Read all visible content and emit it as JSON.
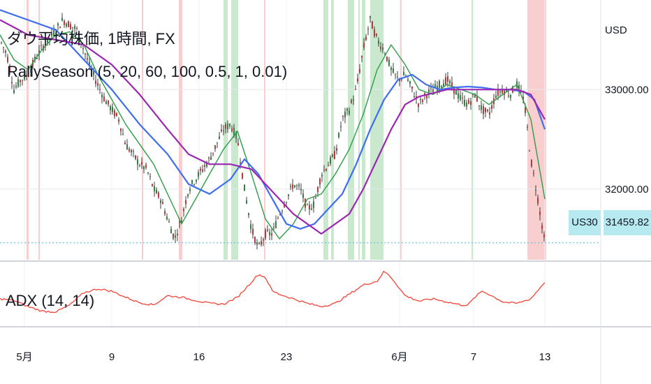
{
  "chart_title": "ダウ平均株価, 1時間, FX",
  "indicator_label": "RallySeason (5, 20, 60, 100, 0.5, 1, 0.01)",
  "adx_label": "ADX (14, 14)",
  "currency": "USD",
  "price_tag": {
    "symbol": "US30",
    "value": "31459.82"
  },
  "colors": {
    "candle": "#3c3c3c",
    "ma_green": "#2e9c46",
    "ma_blue": "#3f6df0",
    "ma_purple": "#9c27b0",
    "adx": "#f44336",
    "band_red": "#f8c5c5",
    "band_green": "#bfe4c4",
    "price_tag_bg": "#b7e9f0"
  },
  "chart_data": [
    {
      "type": "line",
      "panel": "price",
      "y_ticks": [
        "33000.00",
        "32000.00"
      ],
      "ylim": [
        31290,
        33900
      ],
      "x_ticks": [
        "5月",
        "9",
        "16",
        "23",
        "6月",
        "7",
        "13"
      ],
      "series": [
        {
          "role": "price",
          "x": [
            0,
            10,
            20,
            30,
            40,
            50,
            60,
            70,
            80,
            90,
            100,
            110,
            120,
            130,
            140,
            150,
            160,
            170,
            180,
            190,
            200,
            210,
            220,
            230,
            240,
            250,
            260,
            270,
            280,
            290,
            300,
            310,
            320,
            330,
            340,
            350,
            360,
            370,
            380,
            390,
            400,
            410,
            420,
            430,
            440,
            450,
            460,
            470,
            480,
            490,
            500,
            510,
            520,
            530,
            540,
            550,
            560,
            570,
            580,
            590,
            600,
            610,
            620,
            630,
            640,
            650,
            660,
            670,
            680,
            690,
            700,
            710,
            720,
            730,
            740,
            750,
            760,
            770,
            780
          ],
          "y": [
            33500,
            33350,
            33000,
            33100,
            33150,
            33300,
            33420,
            33500,
            33600,
            33700,
            33650,
            33600,
            33400,
            33200,
            33050,
            32900,
            32800,
            32700,
            32450,
            32350,
            32250,
            32200,
            32000,
            31900,
            31700,
            31500,
            31700,
            32000,
            32100,
            32200,
            32300,
            32450,
            32600,
            32650,
            32500,
            32000,
            31600,
            31400,
            31550,
            31550,
            31750,
            31900,
            32050,
            32000,
            31800,
            31850,
            32150,
            32250,
            32350,
            32700,
            32800,
            33000,
            33400,
            33700,
            33500,
            33400,
            33200,
            33100,
            33150,
            33000,
            32850,
            32950,
            33000,
            33050,
            33100,
            33000,
            32900,
            32850,
            32950,
            32800,
            32750,
            32950,
            33000,
            32950,
            33050,
            32900,
            32300,
            31900,
            31460
          ]
        },
        {
          "role": "ma_green",
          "x": [
            0,
            20,
            40,
            60,
            80,
            100,
            120,
            140,
            160,
            180,
            200,
            220,
            240,
            260,
            280,
            300,
            320,
            340,
            360,
            380,
            400,
            420,
            440,
            460,
            480,
            500,
            520,
            540,
            560,
            580,
            600,
            620,
            640,
            660,
            680,
            700,
            720,
            740,
            760,
            780
          ],
          "y": [
            33550,
            33300,
            33200,
            33400,
            33550,
            33580,
            33450,
            33150,
            32900,
            32650,
            32450,
            32250,
            31950,
            31650,
            31900,
            32150,
            32400,
            32580,
            32150,
            31700,
            31500,
            31650,
            31900,
            31950,
            32150,
            32400,
            32750,
            33200,
            33450,
            33250,
            33000,
            32950,
            33050,
            33000,
            32950,
            32850,
            32950,
            33050,
            32700,
            31900
          ]
        },
        {
          "role": "ma_blue",
          "x": [
            0,
            40,
            80,
            120,
            160,
            200,
            240,
            270,
            300,
            330,
            350,
            370,
            390,
            410,
            430,
            450,
            470,
            490,
            510,
            530,
            550,
            570,
            590,
            610,
            630,
            650,
            670,
            690,
            710,
            730,
            750,
            765,
            780
          ],
          "y": [
            33800,
            33700,
            33600,
            33300,
            33000,
            32650,
            32350,
            32050,
            31950,
            32100,
            32300,
            32150,
            31900,
            31650,
            31600,
            31650,
            31800,
            31950,
            32250,
            32600,
            32900,
            33100,
            33150,
            33050,
            33000,
            33020,
            33030,
            33020,
            33000,
            33000,
            32980,
            32900,
            32600
          ]
        },
        {
          "role": "ma_purple",
          "x": [
            0,
            40,
            80,
            120,
            160,
            200,
            240,
            270,
            300,
            330,
            360,
            380,
            400,
            420,
            440,
            460,
            480,
            500,
            520,
            540,
            560,
            580,
            600,
            640,
            680,
            720,
            740,
            760,
            780
          ],
          "y": [
            33700,
            33550,
            33500,
            33450,
            33250,
            32950,
            32600,
            32350,
            32250,
            32250,
            32200,
            32050,
            31900,
            31750,
            31650,
            31550,
            31650,
            31750,
            32000,
            32300,
            32600,
            32850,
            32930,
            33000,
            33000,
            33000,
            33000,
            32950,
            32700
          ]
        }
      ],
      "bands": [
        {
          "color": "red",
          "x_start": 38,
          "x_end": 41
        },
        {
          "color": "red",
          "x_start": 55,
          "x_end": 57
        },
        {
          "color": "red",
          "x_start": 203,
          "x_end": 205
        },
        {
          "color": "red",
          "x_start": 256,
          "x_end": 261
        },
        {
          "color": "green",
          "x_start": 320,
          "x_end": 326
        },
        {
          "color": "green",
          "x_start": 331,
          "x_end": 341
        },
        {
          "color": "red",
          "x_start": 378,
          "x_end": 380
        },
        {
          "color": "green",
          "x_start": 463,
          "x_end": 470
        },
        {
          "color": "green",
          "x_start": 474,
          "x_end": 478
        },
        {
          "color": "green",
          "x_start": 498,
          "x_end": 507
        },
        {
          "color": "green",
          "x_start": 513,
          "x_end": 515
        },
        {
          "color": "green",
          "x_start": 518,
          "x_end": 523
        },
        {
          "color": "green",
          "x_start": 530,
          "x_end": 549
        },
        {
          "color": "red",
          "x_start": 573,
          "x_end": 575
        },
        {
          "color": "green",
          "x_start": 675,
          "x_end": 677
        },
        {
          "color": "red",
          "x_start": 755,
          "x_end": 782
        }
      ]
    },
    {
      "type": "line",
      "panel": "adx",
      "ylim": [
        0,
        60
      ],
      "series": [
        {
          "role": "adx",
          "x": [
            0,
            20,
            40,
            60,
            80,
            100,
            120,
            140,
            160,
            180,
            200,
            220,
            240,
            260,
            280,
            300,
            320,
            340,
            360,
            370,
            380,
            390,
            400,
            420,
            440,
            460,
            480,
            500,
            520,
            540,
            550,
            560,
            580,
            600,
            620,
            640,
            660,
            670,
            680,
            690,
            700,
            720,
            740,
            760,
            780
          ],
          "y": [
            20,
            18,
            10,
            4,
            3,
            12,
            28,
            33,
            30,
            22,
            15,
            12,
            24,
            22,
            18,
            14,
            13,
            22,
            42,
            52,
            48,
            30,
            26,
            20,
            14,
            10,
            14,
            26,
            38,
            43,
            56,
            48,
            24,
            17,
            20,
            16,
            12,
            12,
            22,
            30,
            26,
            16,
            14,
            20,
            42
          ]
        }
      ]
    }
  ]
}
